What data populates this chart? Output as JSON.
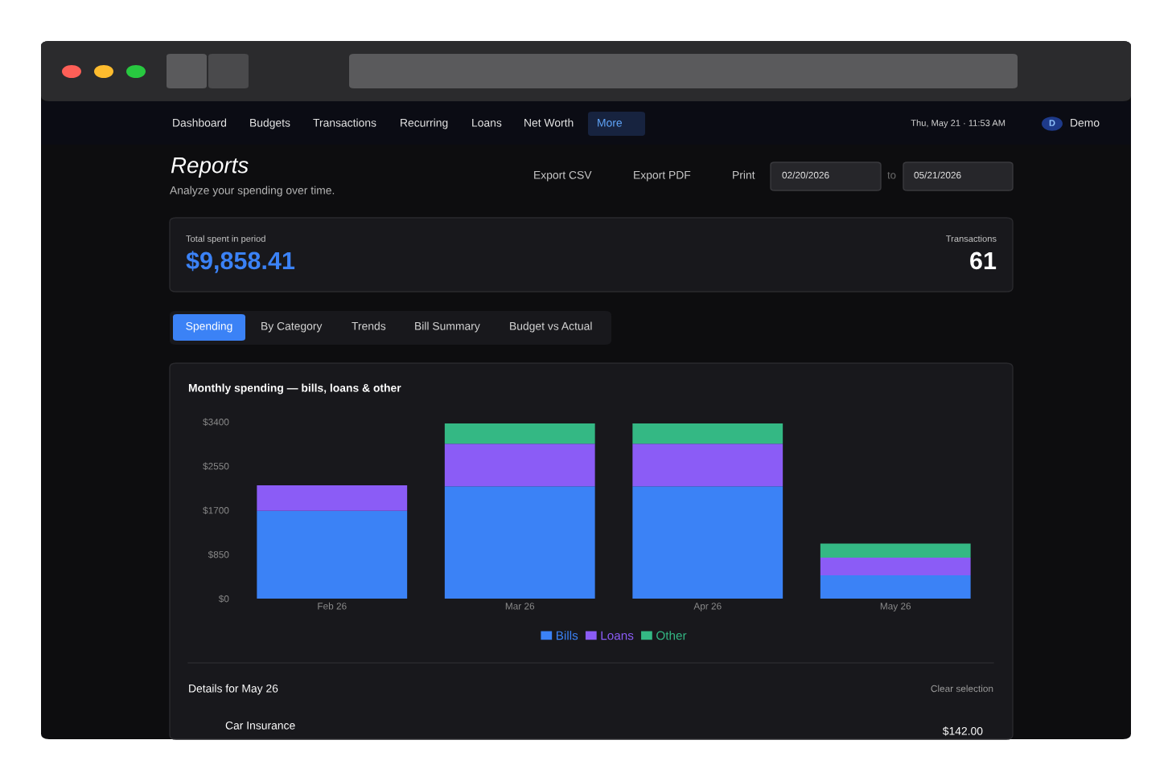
{
  "chart_data": {
    "type": "bar",
    "title": "Monthly spending — bills, loans & other",
    "categories": [
      "Feb 26",
      "Mar 26",
      "Apr 26",
      "May 26"
    ],
    "stacked": true,
    "series": [
      {
        "name": "Bills",
        "color": "#3b82f6",
        "values": [
          1690,
          2160,
          2160,
          450
        ]
      },
      {
        "name": "Loans",
        "color": "#8b5cf6",
        "values": [
          490,
          820,
          820,
          340
        ]
      },
      {
        "name": "Other",
        "color": "#34b884",
        "values": [
          0,
          390,
          390,
          270
        ]
      }
    ],
    "ylim": [
      0,
      3400
    ],
    "yticks": [
      {
        "value": 0,
        "label": "$0"
      },
      {
        "value": 850,
        "label": "$850"
      },
      {
        "value": 1700,
        "label": "$1700"
      },
      {
        "value": 2550,
        "label": "$2550"
      },
      {
        "value": 3400,
        "label": "$3400"
      }
    ],
    "grid": false,
    "legend": "bottom",
    "annotations": [
      "Dashboard",
      "Budgets",
      "Transactions",
      "Recurring",
      "Loans",
      "Net Worth",
      "More",
      "Thu, May 21 · 11:53 AM",
      "D",
      "Demo",
      "Reports",
      "Analyze your spending over time.",
      "Export CSV",
      "Export PDF",
      "Print",
      "02/20/2026",
      "to",
      "05/21/2026",
      "Total spent in period",
      "$9,858.41",
      "Transactions",
      "61",
      "Spending",
      "By Category",
      "Trends",
      "Bill Summary",
      "Budget vs Actual",
      "Details for May 26",
      "Clear selection",
      "Car Insurance",
      "$142.00"
    ]
  }
}
